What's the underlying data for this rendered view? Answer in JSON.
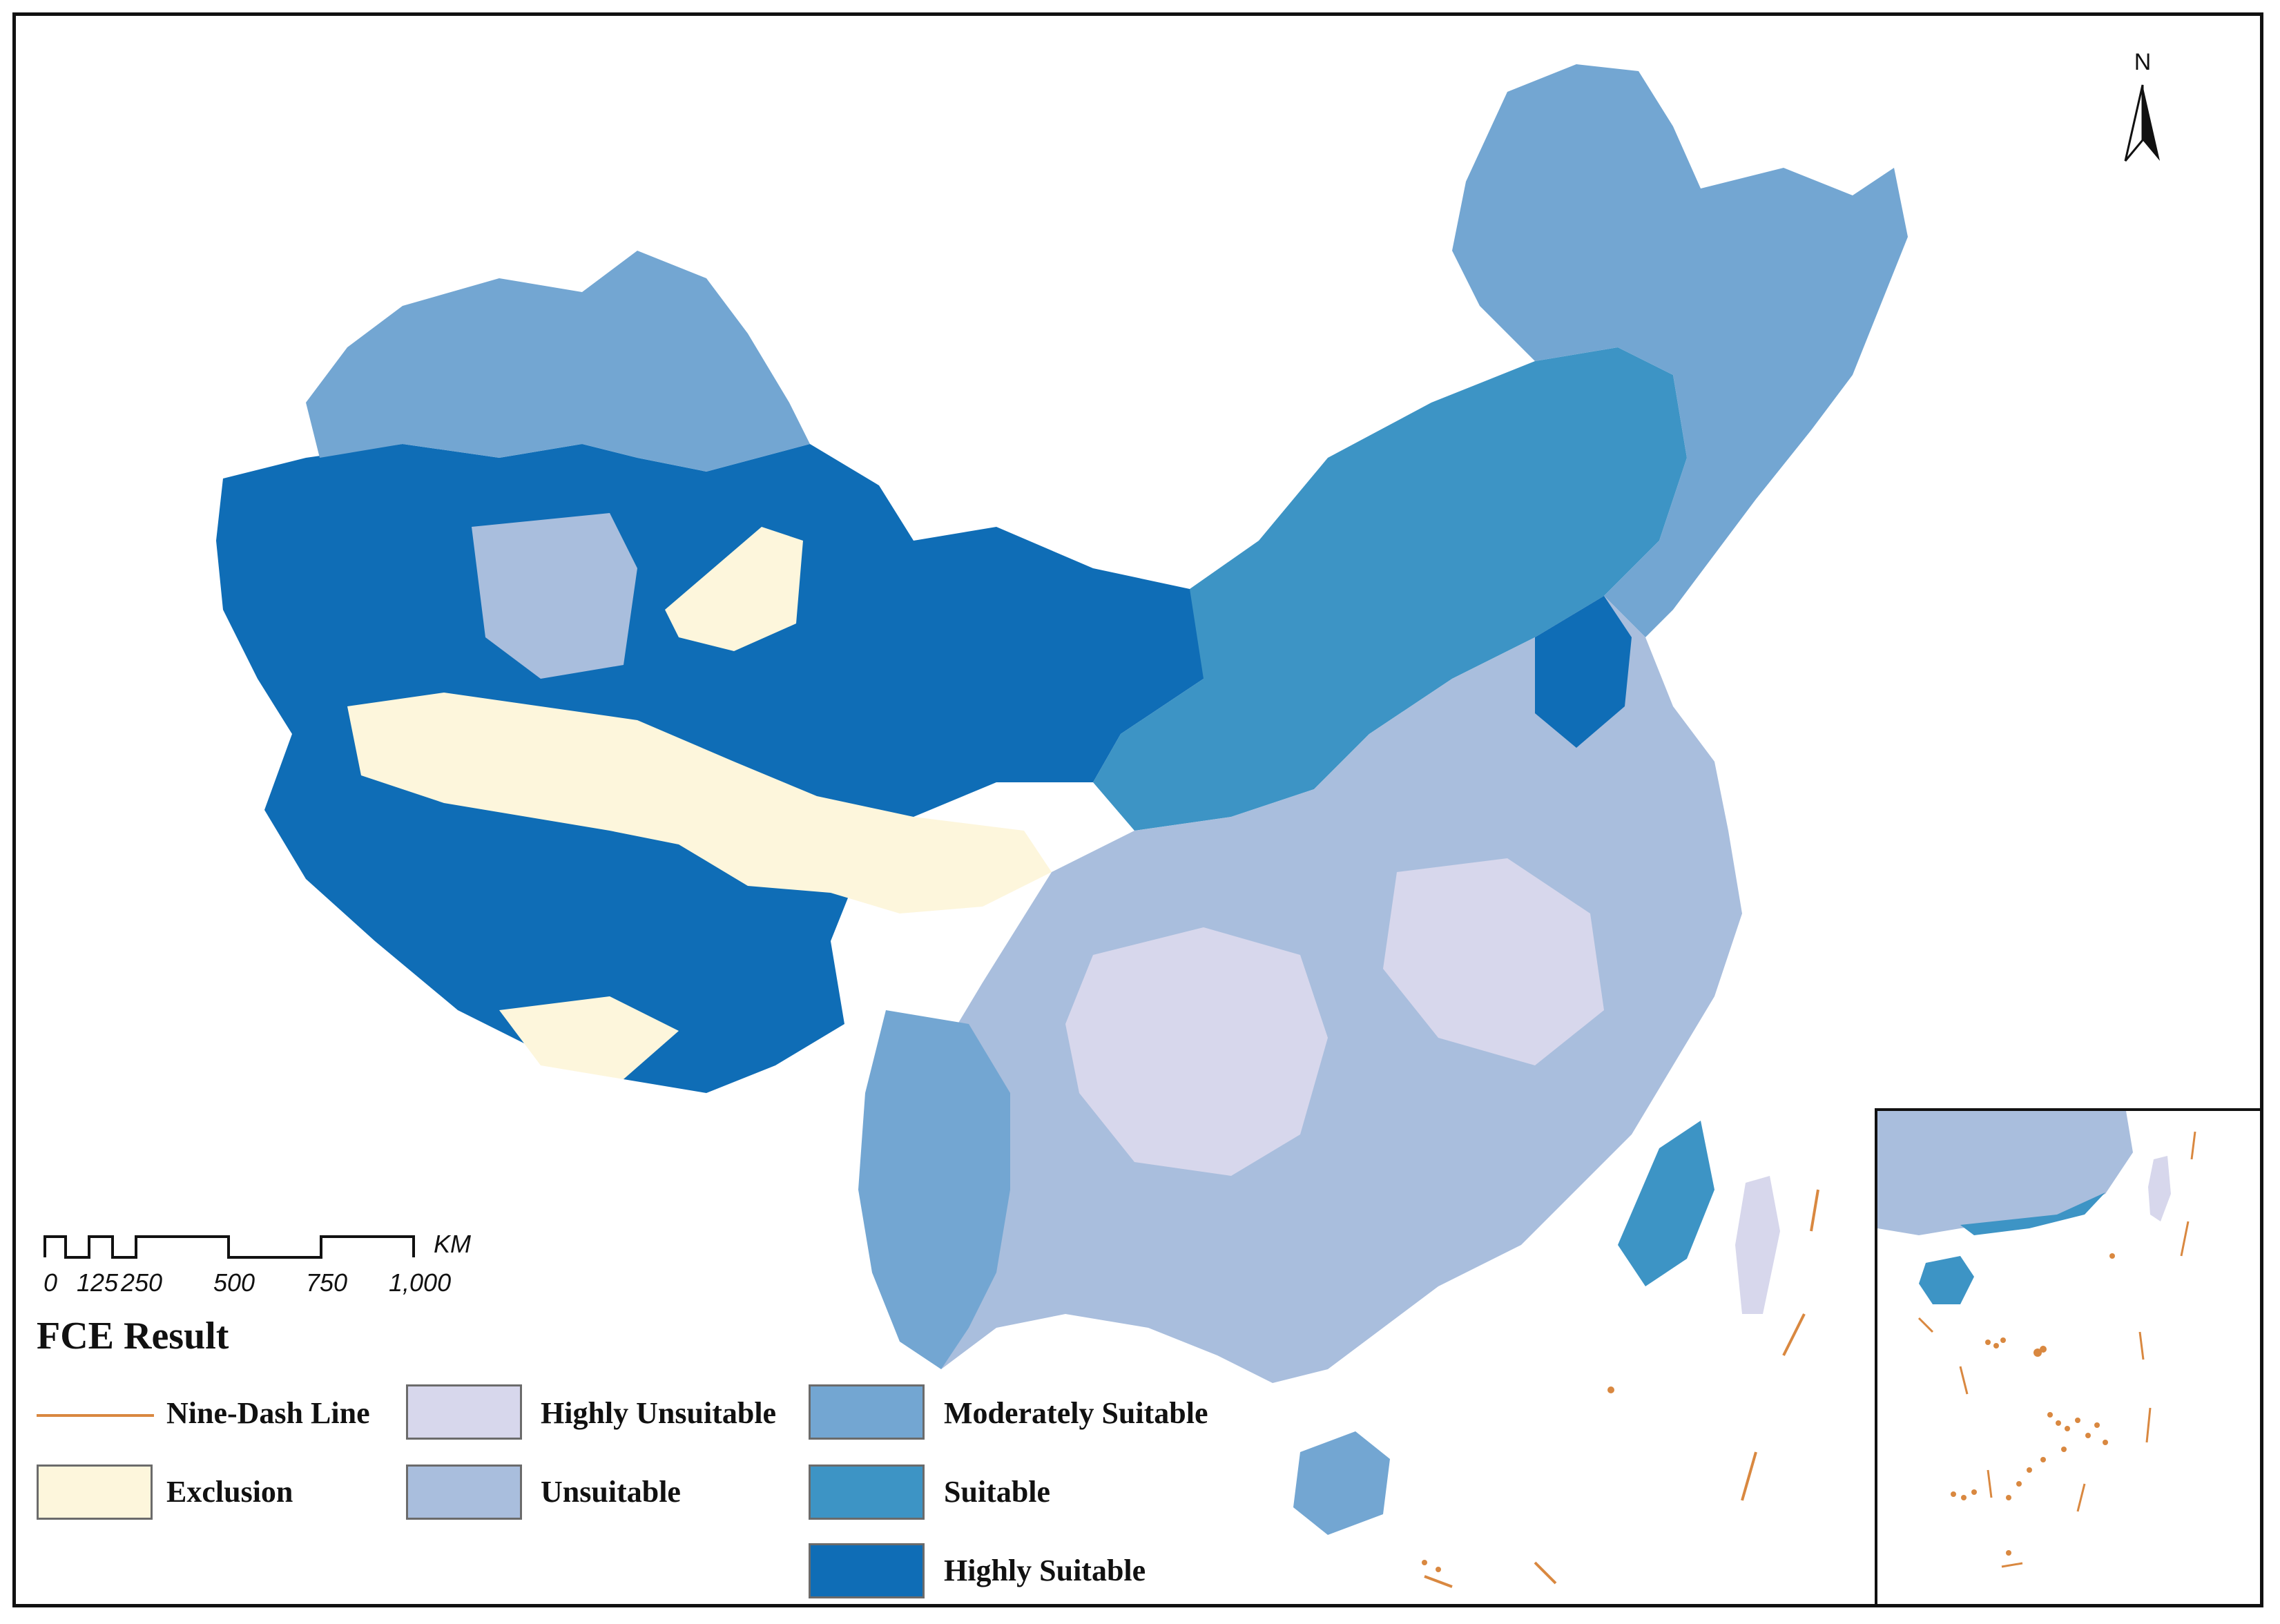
{
  "map": {
    "title": "FCE Result",
    "north_label": "N",
    "scale": {
      "ticks": [
        "0",
        "125",
        "250",
        "500",
        "750",
        "1,000"
      ],
      "unit": "KM"
    },
    "legend": [
      {
        "label": "Nine-Dash Line",
        "kind": "line",
        "color": "#d98840"
      },
      {
        "label": "Exclusion",
        "kind": "fill",
        "color": "#fdf6dc"
      },
      {
        "label": "Highly Unsuitable",
        "kind": "fill",
        "color": "#d7d7ec"
      },
      {
        "label": "Unsuitable",
        "kind": "fill",
        "color": "#a9bedd"
      },
      {
        "label": "Moderately Suitable",
        "kind": "fill",
        "color": "#73a6d2"
      },
      {
        "label": "Suitable",
        "kind": "fill",
        "color": "#3d94c5"
      },
      {
        "label": "Highly Suitable",
        "kind": "fill",
        "color": "#0f6db6"
      }
    ]
  }
}
